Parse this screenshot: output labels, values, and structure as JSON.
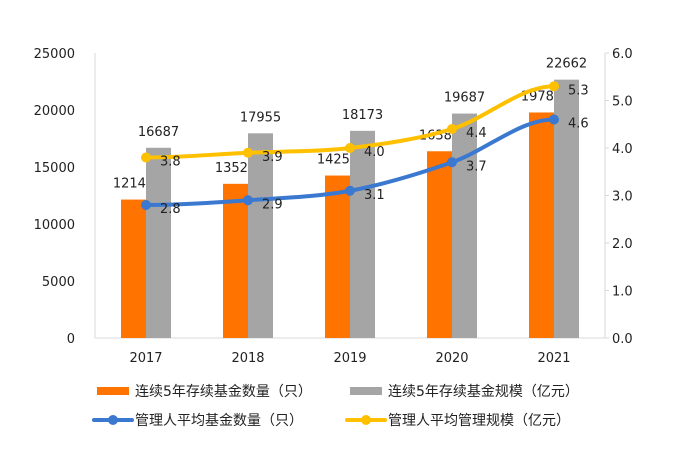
{
  "chart_data": {
    "type": "bar+line",
    "categories": [
      "2017",
      "2018",
      "2019",
      "2020",
      "2021"
    ],
    "left_axis": {
      "ylim": [
        0,
        25000
      ],
      "ticks": [
        "0",
        "5000",
        "10000",
        "15000",
        "20000",
        "25000"
      ]
    },
    "right_axis": {
      "ylim": [
        0,
        6.0
      ],
      "ticks": [
        "0.0",
        "1.0",
        "2.0",
        "3.0",
        "4.0",
        "5.0",
        "6.0"
      ]
    },
    "grid": false,
    "legend_position": "bottom",
    "series": [
      {
        "name": "连续5年存续基金数量（只）",
        "type": "bar",
        "axis": "left",
        "color": "#FF7300",
        "values": [
          12143,
          13523,
          14251,
          16380,
          19783
        ],
        "labels": [
          "12143",
          "13523",
          "14251",
          "16380",
          "19783"
        ]
      },
      {
        "name": "连续5年存续基金规模（亿元）",
        "type": "bar",
        "axis": "left",
        "color": "#A5A5A5",
        "values": [
          16687,
          17955,
          18173,
          19687,
          22662
        ],
        "labels": [
          "16687",
          "17955",
          "18173",
          "19687",
          "22662"
        ]
      },
      {
        "name": "管理人平均基金数量（只）",
        "type": "line",
        "axis": "right",
        "color": "#3B78D0",
        "values": [
          2.8,
          2.9,
          3.1,
          3.7,
          4.6
        ],
        "labels": [
          "2.8",
          "2.9",
          "3.1",
          "3.7",
          "4.6"
        ]
      },
      {
        "name": "管理人平均管理规模（亿元）",
        "type": "line",
        "axis": "right",
        "color": "#FFC000",
        "values": [
          3.8,
          3.9,
          4.0,
          4.4,
          5.3
        ],
        "labels": [
          "3.8",
          "3.9",
          "4.0",
          "4.4",
          "5.3"
        ]
      }
    ]
  }
}
